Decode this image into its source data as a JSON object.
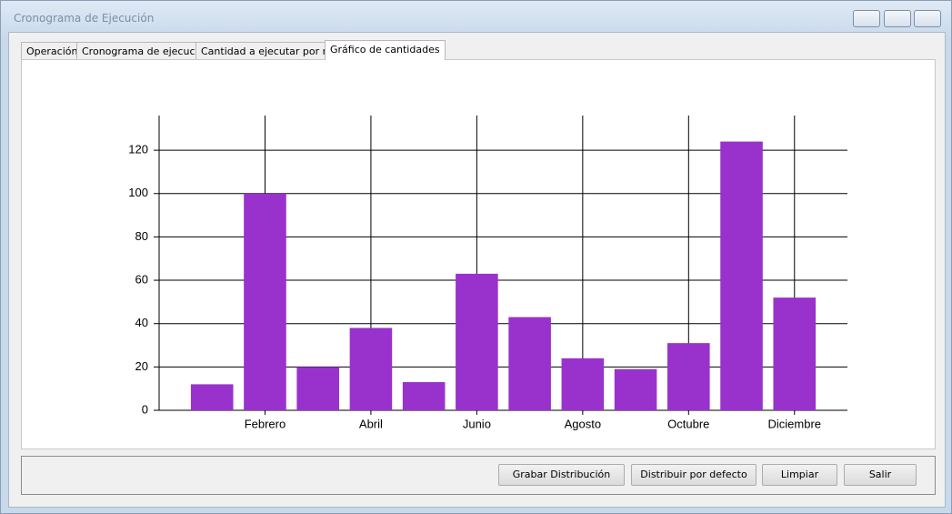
{
  "window": {
    "title": "Cronograma de Ejecución"
  },
  "tabs": [
    "Operación",
    "Cronograma de ejecución",
    "Cantidad a ejecutar por mes",
    "Gráfico de cantidades"
  ],
  "chart_data": {
    "type": "bar",
    "categories": [
      null,
      "Febrero",
      null,
      "Abril",
      null,
      "Junio",
      null,
      "Agosto",
      null,
      "Octubre",
      null,
      "Diciembre"
    ],
    "values": [
      12,
      100,
      20,
      38,
      13,
      63,
      43,
      24,
      19,
      31,
      124,
      52
    ],
    "color": "#9932cc",
    "ylim": [
      0,
      136
    ],
    "yticks": [
      0,
      20,
      40,
      60,
      80,
      100,
      120
    ],
    "grid": true
  },
  "buttons": [
    "Grabar Distribución",
    "Distribuir por defecto",
    "Limpiar",
    "Salir"
  ]
}
